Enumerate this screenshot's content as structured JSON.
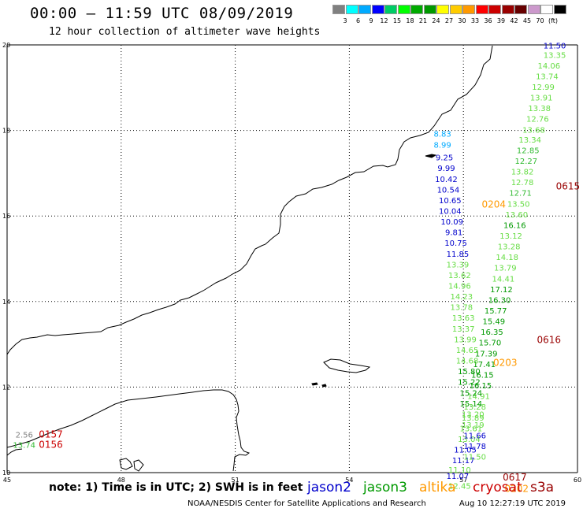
{
  "header": {
    "title": "00:00 – 11:59 UTC 08/09/2019",
    "subtitle": "12 hour collection of altimeter wave heights"
  },
  "legend": {
    "colors": [
      "#808080",
      "#00ffff",
      "#00aaff",
      "#0000ff",
      "#00cc66",
      "#00ff00",
      "#00aa00",
      "#009900",
      "#ffff00",
      "#ffcc00",
      "#ff9900",
      "#ff0000",
      "#cc0000",
      "#990000",
      "#660000",
      "#cc99cc",
      "#ffffff",
      "#000000"
    ],
    "labels": [
      "3",
      "6",
      "9",
      "12",
      "15",
      "18",
      "21",
      "24",
      "27",
      "30",
      "33",
      "36",
      "39",
      "42",
      "45",
      "70",
      "(ft)"
    ]
  },
  "axes": {
    "x_ticks": [
      "45",
      "48",
      "51",
      "54",
      "57",
      "60"
    ],
    "y_ticks": [
      "10",
      "12",
      "14",
      "16",
      "18",
      "20"
    ],
    "lon_range": [
      45,
      60
    ],
    "lat_range": [
      10,
      20
    ]
  },
  "footer": {
    "note": "note: 1) Time is in UTC; 2) SWH is in feet",
    "satellites": [
      {
        "name": "jason2",
        "color": "#0000cc"
      },
      {
        "name": "jason3",
        "color": "#009900"
      },
      {
        "name": "altika",
        "color": "#ff9900"
      },
      {
        "name": "cryosat",
        "color": "#cc0000"
      },
      {
        "name": "s3a",
        "color": "#990000"
      }
    ],
    "credit": "NOAA/NESDIS Center for Satellite Applications and Research",
    "timestamp": "Aug 10 12:27:19 UTC 2019"
  },
  "observations": [
    {
      "lon": 59.4,
      "lat": 19.92,
      "v": "11.50",
      "c": "#0000cc"
    },
    {
      "lon": 59.4,
      "lat": 19.7,
      "v": "13.35",
      "c": "#66dd44"
    },
    {
      "lon": 59.25,
      "lat": 19.45,
      "v": "14.06",
      "c": "#66dd44"
    },
    {
      "lon": 59.2,
      "lat": 19.2,
      "v": "13.74",
      "c": "#66dd44"
    },
    {
      "lon": 59.1,
      "lat": 18.95,
      "v": "12.99",
      "c": "#66dd44"
    },
    {
      "lon": 59.05,
      "lat": 18.7,
      "v": "13.91",
      "c": "#66dd44"
    },
    {
      "lon": 59.0,
      "lat": 18.45,
      "v": "13.38",
      "c": "#66dd44"
    },
    {
      "lon": 58.95,
      "lat": 18.2,
      "v": "12.76",
      "c": "#66dd44"
    },
    {
      "lon": 58.85,
      "lat": 17.95,
      "v": "13.68",
      "c": "#66dd44"
    },
    {
      "lon": 58.75,
      "lat": 17.72,
      "v": "13.34",
      "c": "#66dd44"
    },
    {
      "lon": 58.7,
      "lat": 17.47,
      "v": "12.85",
      "c": "#33bb33"
    },
    {
      "lon": 58.65,
      "lat": 17.22,
      "v": "12.27",
      "c": "#33bb33"
    },
    {
      "lon": 58.55,
      "lat": 16.97,
      "v": "13.82",
      "c": "#66dd44"
    },
    {
      "lon": 58.55,
      "lat": 16.72,
      "v": "12.78",
      "c": "#66dd44"
    },
    {
      "lon": 58.5,
      "lat": 16.47,
      "v": "12.71",
      "c": "#33bb33"
    },
    {
      "lon": 58.45,
      "lat": 16.22,
      "v": "13.50",
      "c": "#66dd44"
    },
    {
      "lon": 58.4,
      "lat": 15.97,
      "v": "13.60",
      "c": "#66dd44"
    },
    {
      "lon": 58.35,
      "lat": 15.72,
      "v": "16.16",
      "c": "#009900"
    },
    {
      "lon": 58.25,
      "lat": 15.47,
      "v": "13.12",
      "c": "#66dd44"
    },
    {
      "lon": 58.2,
      "lat": 15.22,
      "v": "13.28",
      "c": "#66dd44"
    },
    {
      "lon": 58.15,
      "lat": 14.97,
      "v": "14.18",
      "c": "#66dd44"
    },
    {
      "lon": 58.1,
      "lat": 14.72,
      "v": "13.79",
      "c": "#66dd44"
    },
    {
      "lon": 58.05,
      "lat": 14.47,
      "v": "14.41",
      "c": "#66dd44"
    },
    {
      "lon": 58.0,
      "lat": 14.22,
      "v": "17.12",
      "c": "#009900"
    },
    {
      "lon": 57.95,
      "lat": 13.97,
      "v": "16.30",
      "c": "#009900"
    },
    {
      "lon": 57.85,
      "lat": 13.72,
      "v": "15.77",
      "c": "#009900"
    },
    {
      "lon": 57.8,
      "lat": 13.47,
      "v": "15.49",
      "c": "#009900"
    },
    {
      "lon": 57.75,
      "lat": 13.22,
      "v": "16.35",
      "c": "#009900"
    },
    {
      "lon": 57.7,
      "lat": 12.97,
      "v": "15.70",
      "c": "#009900"
    },
    {
      "lon": 57.6,
      "lat": 12.72,
      "v": "17.39",
      "c": "#009900"
    },
    {
      "lon": 57.55,
      "lat": 12.47,
      "v": "17.41",
      "c": "#009900"
    },
    {
      "lon": 57.5,
      "lat": 12.22,
      "v": "16.15",
      "c": "#009900"
    },
    {
      "lon": 57.45,
      "lat": 11.97,
      "v": "16.15",
      "c": "#009900"
    },
    {
      "lon": 57.4,
      "lat": 11.72,
      "v": "14.91",
      "c": "#66dd44"
    },
    {
      "lon": 57.3,
      "lat": 11.47,
      "v": "13.28",
      "c": "#66dd44"
    },
    {
      "lon": 57.25,
      "lat": 11.22,
      "v": "13.89",
      "c": "#66dd44"
    },
    {
      "lon": 57.2,
      "lat": 10.97,
      "v": "13.61",
      "c": "#66dd44"
    },
    {
      "lon": 57.15,
      "lat": 10.72,
      "v": "13.04",
      "c": "#66dd44"
    },
    {
      "lon": 57.05,
      "lat": 10.47,
      "v": "11.05",
      "c": "#0000cc"
    },
    {
      "lon": 57.0,
      "lat": 10.22,
      "v": "11.17",
      "c": "#0000cc"
    },
    {
      "lon": 56.9,
      "lat": 10.0,
      "v": "11.10",
      "c": "#66dd44"
    },
    {
      "lon": 56.85,
      "lat": 9.85,
      "v": "11.07",
      "c": "#0000cc"
    },
    {
      "lon": 56.9,
      "lat": 9.62,
      "v": "12.45",
      "c": "#66dd44"
    },
    {
      "lon": 56.45,
      "lat": 17.85,
      "v": "8.83",
      "c": "#00aaff"
    },
    {
      "lon": 56.45,
      "lat": 17.6,
      "v": "8.99",
      "c": "#00aaff"
    },
    {
      "lon": 56.5,
      "lat": 17.3,
      "v": "9.25",
      "c": "#0000cc"
    },
    {
      "lon": 56.55,
      "lat": 17.05,
      "v": "9.99",
      "c": "#0000cc"
    },
    {
      "lon": 56.55,
      "lat": 16.8,
      "v": "10.42",
      "c": "#0000cc"
    },
    {
      "lon": 56.6,
      "lat": 16.55,
      "v": "10.54",
      "c": "#0000cc"
    },
    {
      "lon": 56.65,
      "lat": 16.3,
      "v": "10.65",
      "c": "#0000cc"
    },
    {
      "lon": 56.65,
      "lat": 16.05,
      "v": "10.04",
      "c": "#0000cc"
    },
    {
      "lon": 56.7,
      "lat": 15.8,
      "v": "10.09",
      "c": "#0000cc"
    },
    {
      "lon": 56.75,
      "lat": 15.55,
      "v": "9.81",
      "c": "#0000cc"
    },
    {
      "lon": 56.8,
      "lat": 15.3,
      "v": "10.75",
      "c": "#0000cc"
    },
    {
      "lon": 56.85,
      "lat": 15.05,
      "v": "11.85",
      "c": "#0000cc"
    },
    {
      "lon": 56.85,
      "lat": 14.8,
      "v": "13.39",
      "c": "#66dd44"
    },
    {
      "lon": 56.9,
      "lat": 14.55,
      "v": "13.62",
      "c": "#66dd44"
    },
    {
      "lon": 56.9,
      "lat": 14.3,
      "v": "14.96",
      "c": "#66dd44"
    },
    {
      "lon": 56.95,
      "lat": 14.05,
      "v": "14.23",
      "c": "#66dd44"
    },
    {
      "lon": 56.95,
      "lat": 13.8,
      "v": "13.78",
      "c": "#66dd44"
    },
    {
      "lon": 57.0,
      "lat": 13.55,
      "v": "13.63",
      "c": "#66dd44"
    },
    {
      "lon": 57.0,
      "lat": 13.3,
      "v": "13.37",
      "c": "#66dd44"
    },
    {
      "lon": 57.05,
      "lat": 13.05,
      "v": "13.99",
      "c": "#66dd44"
    },
    {
      "lon": 57.1,
      "lat": 12.8,
      "v": "14.65",
      "c": "#66dd44"
    },
    {
      "lon": 57.1,
      "lat": 12.55,
      "v": "14.68",
      "c": "#66dd44"
    },
    {
      "lon": 57.15,
      "lat": 12.3,
      "v": "15.80",
      "c": "#009900"
    },
    {
      "lon": 57.15,
      "lat": 12.05,
      "v": "15.22",
      "c": "#009900"
    },
    {
      "lon": 57.2,
      "lat": 11.8,
      "v": "15.24",
      "c": "#009900"
    },
    {
      "lon": 57.2,
      "lat": 11.55,
      "v": "15.14",
      "c": "#009900"
    },
    {
      "lon": 57.25,
      "lat": 11.3,
      "v": "13.20",
      "c": "#66dd44"
    },
    {
      "lon": 57.25,
      "lat": 11.05,
      "v": "13.19",
      "c": "#66dd44"
    },
    {
      "lon": 57.3,
      "lat": 10.8,
      "v": "11.66",
      "c": "#0000cc"
    },
    {
      "lon": 57.3,
      "lat": 10.55,
      "v": "11.78",
      "c": "#0000cc"
    },
    {
      "lon": 57.3,
      "lat": 10.3,
      "v": "11.50",
      "c": "#66dd44"
    },
    {
      "lon": 57.8,
      "lat": 16.2,
      "v": "0204",
      "c": "#ff9900"
    },
    {
      "lon": 58.1,
      "lat": 12.5,
      "v": "0203",
      "c": "#ff9900"
    },
    {
      "lon": 58.4,
      "lat": 9.55,
      "v": "0202",
      "c": "#ff9900"
    },
    {
      "lon": 59.75,
      "lat": 16.62,
      "v": "0615",
      "c": "#990000"
    },
    {
      "lon": 59.25,
      "lat": 13.03,
      "v": "0616",
      "c": "#990000"
    },
    {
      "lon": 58.35,
      "lat": 9.82,
      "v": "0617",
      "c": "#990000"
    },
    {
      "lon": 45.45,
      "lat": 10.82,
      "v": "2.56",
      "c": "#808080"
    },
    {
      "lon": 45.45,
      "lat": 10.58,
      "v": "13.74",
      "c": "#33bb33"
    },
    {
      "lon": 46.15,
      "lat": 10.82,
      "v": "0157",
      "c": "#cc0000"
    },
    {
      "lon": 46.15,
      "lat": 10.58,
      "v": "0156",
      "c": "#cc0000"
    }
  ]
}
